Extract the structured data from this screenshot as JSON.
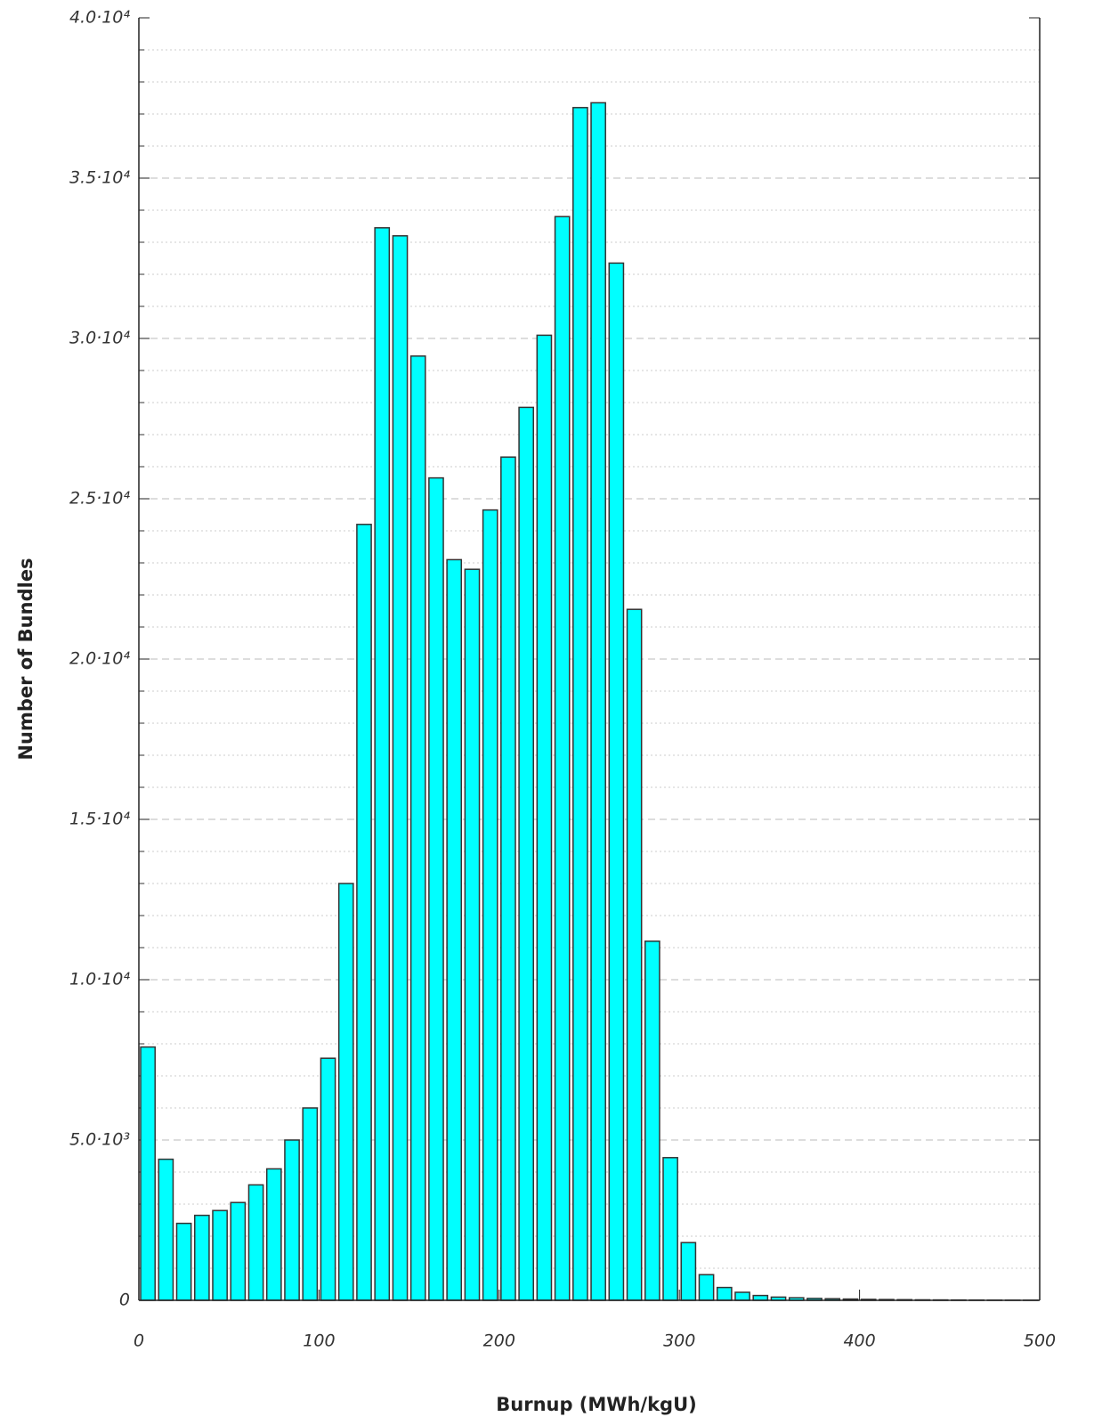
{
  "chart_data": {
    "type": "histogram",
    "xlabel": "Burnup (MWh/kgU)",
    "ylabel": "Number of Bundles",
    "bins": [
      0,
      10,
      20,
      30,
      40,
      50,
      60,
      70,
      80,
      90,
      100,
      110,
      120,
      130,
      140,
      150,
      160,
      170,
      180,
      190,
      200,
      210,
      220,
      230,
      240,
      250,
      260,
      270,
      280,
      290,
      300,
      310,
      320,
      330,
      340,
      350,
      360,
      370,
      380,
      390,
      400,
      410,
      420,
      430,
      440,
      450,
      460,
      470,
      480,
      490,
      500
    ],
    "values": [
      7900,
      4400,
      2400,
      2650,
      2800,
      3050,
      3600,
      4100,
      5000,
      6000,
      7550,
      13000,
      24200,
      33450,
      33200,
      29450,
      25650,
      23100,
      22800,
      24650,
      26300,
      27850,
      30100,
      33800,
      37200,
      37350,
      32350,
      21550,
      11200,
      4450,
      1800,
      800,
      400,
      250,
      150,
      100,
      80,
      60,
      50,
      40,
      30,
      25,
      20,
      15,
      12,
      10,
      8,
      6,
      5,
      4
    ],
    "color": "#00ffff",
    "edgecolor": "#333333",
    "xlim": [
      0,
      500
    ],
    "xticks": [
      0,
      100,
      200,
      300,
      400,
      500
    ],
    "ylim": [
      0,
      40000
    ],
    "yticks": [
      0,
      {
        "value": 5000,
        "label": "5.0·10³"
      },
      {
        "value": 10000,
        "label": "1.0·10⁴"
      },
      {
        "value": 15000,
        "label": "1.5·10⁴"
      },
      {
        "value": 20000,
        "label": "2.0·10⁴"
      },
      {
        "value": 25000,
        "label": "2.5·10⁴"
      },
      {
        "value": 30000,
        "label": "3.0·10⁴"
      },
      {
        "value": 35000,
        "label": "3.5·10⁴"
      },
      {
        "value": 40000,
        "label": "4.0·10⁴"
      }
    ],
    "minor_yticks": [
      1000,
      2000,
      3000,
      4000,
      6000,
      7000,
      8000,
      9000,
      11000,
      12000,
      13000,
      14000,
      16000,
      17000,
      18000,
      19000,
      21000,
      22000,
      23000,
      24000,
      26000,
      27000,
      28000,
      29000,
      31000,
      32000,
      33000,
      34000,
      36000,
      37000,
      38000,
      39000
    ],
    "grid": true
  }
}
